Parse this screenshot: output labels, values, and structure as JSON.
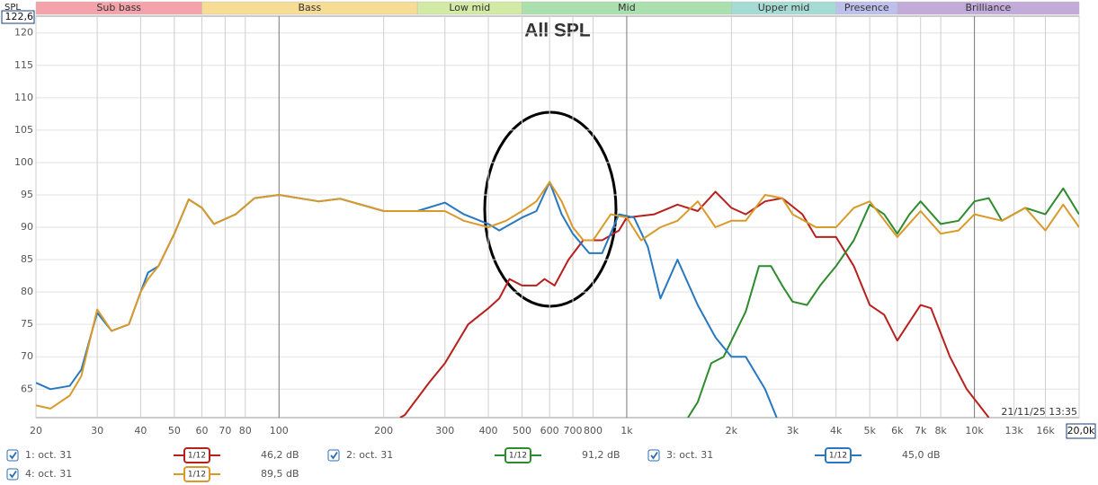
{
  "chart_data": {
    "type": "line",
    "title": "All SPL",
    "ylabel": "SPL",
    "timestamp": "21/11/25 13:35",
    "xscale": "log",
    "grid": true,
    "xlim": [
      20,
      20000
    ],
    "ylim": [
      60.6,
      122.6
    ],
    "yticks": [
      65,
      70,
      75,
      80,
      85,
      90,
      95,
      100,
      105,
      110,
      115,
      120,
      {
        "value": 122.6,
        "label": "122,6"
      }
    ],
    "xticks": [
      20,
      30,
      40,
      50,
      60,
      70,
      80,
      100,
      200,
      300,
      400,
      500,
      600,
      700,
      800,
      {
        "value": 1000,
        "label": "1k"
      },
      {
        "value": 2000,
        "label": "2k"
      },
      {
        "value": 3000,
        "label": "3k"
      },
      {
        "value": 4000,
        "label": "4k"
      },
      {
        "value": 5000,
        "label": "5k"
      },
      {
        "value": 6000,
        "label": "6k"
      },
      {
        "value": 7000,
        "label": "7k"
      },
      {
        "value": 8000,
        "label": "8k"
      },
      {
        "value": 10000,
        "label": "10k"
      },
      {
        "value": 13000,
        "label": "13k"
      },
      {
        "value": 16000,
        "label": "16k"
      },
      {
        "value": 20000,
        "label": "20,0k"
      }
    ],
    "bands": [
      {
        "label": "Sub bass",
        "from": 20,
        "to": 60,
        "color": "#f4a3aa"
      },
      {
        "label": "Bass",
        "from": 60,
        "to": 250,
        "color": "#f7dc96"
      },
      {
        "label": "Low mid",
        "from": 250,
        "to": 500,
        "color": "#d3eaa4"
      },
      {
        "label": "Mid",
        "from": 500,
        "to": 2000,
        "color": "#a9e0ad"
      },
      {
        "label": "Upper mid",
        "from": 2000,
        "to": 4000,
        "color": "#a6dbd4"
      },
      {
        "label": "Presence",
        "from": 4000,
        "to": 6000,
        "color": "#bcc0ea"
      },
      {
        "label": "Brilliance",
        "from": 6000,
        "to": 20000,
        "color": "#c3abd9"
      }
    ],
    "series": [
      {
        "name": "1: oct. 31",
        "smoothing": "1/12",
        "level": "46,2 dB",
        "color": "#b8201e",
        "x": [
          223,
          230,
          270,
          300,
          350,
          400,
          430,
          460,
          500,
          550,
          580,
          620,
          680,
          750,
          850,
          950,
          1000,
          1200,
          1400,
          1600,
          1800,
          2000,
          2200,
          2500,
          2800,
          3200,
          3500,
          4000,
          4500,
          5000,
          5500,
          6000,
          7000,
          7500,
          8500,
          9500,
          10500,
          11000
        ],
        "values": [
          60.6,
          61,
          66,
          69,
          75,
          77.5,
          79,
          82,
          81,
          81,
          82,
          81,
          85,
          88,
          88,
          89.5,
          91.5,
          92,
          93.5,
          92.5,
          95.5,
          93,
          92,
          94,
          94.5,
          92,
          88.5,
          88.5,
          84,
          78,
          76.5,
          72.5,
          78,
          77.5,
          70,
          65,
          62,
          60.6
        ]
      },
      {
        "name": "2: oct. 31",
        "smoothing": "1/12",
        "level": "91,2 dB",
        "color": "#2e8b2e",
        "x": [
          1500,
          1600,
          1750,
          1900,
          2200,
          2400,
          2600,
          2800,
          3000,
          3300,
          3600,
          4000,
          4500,
          5000,
          5500,
          6000,
          6500,
          7000,
          8000,
          9000,
          10000,
          11000,
          12000,
          14000,
          16000,
          18000,
          20000
        ],
        "values": [
          60.6,
          63,
          69,
          70,
          77,
          84,
          84,
          81,
          78.5,
          78,
          81,
          84,
          88,
          93.5,
          92,
          89,
          92,
          94,
          90.5,
          91,
          94,
          94.5,
          91,
          93,
          92,
          96,
          92
        ]
      },
      {
        "name": "3: oct. 31",
        "smoothing": "1/12",
        "level": "45,0 dB",
        "color": "#2878c0",
        "x": [
          20,
          22,
          25,
          27,
          30,
          33,
          37,
          40,
          42,
          45,
          50,
          55,
          60,
          65,
          75,
          85,
          100,
          130,
          150,
          200,
          250,
          300,
          340,
          400,
          430,
          500,
          550,
          600,
          650,
          700,
          780,
          850,
          950,
          1050,
          1150,
          1250,
          1400,
          1600,
          1800,
          2000,
          2200,
          2500,
          2700
        ],
        "values": [
          66,
          65,
          65.5,
          68,
          76.8,
          74,
          75,
          80,
          83,
          84,
          89,
          94.3,
          93,
          90.5,
          92,
          94.5,
          95,
          94,
          94.4,
          92.5,
          92.5,
          93.8,
          92,
          90.5,
          89.5,
          91.5,
          92.5,
          97,
          92,
          89,
          86,
          86,
          92,
          91.5,
          87,
          79,
          85,
          78,
          73,
          70,
          70,
          65,
          60.6
        ]
      },
      {
        "name": "4: oct. 31",
        "smoothing": "1/12",
        "level": "89,5 dB",
        "color": "#d99a2b",
        "x": [
          20,
          22,
          25,
          27,
          30,
          33,
          37,
          40,
          42,
          45,
          50,
          55,
          60,
          65,
          75,
          85,
          100,
          130,
          150,
          200,
          250,
          300,
          340,
          400,
          450,
          500,
          550,
          600,
          650,
          700,
          750,
          800,
          900,
          1000,
          1100,
          1250,
          1400,
          1600,
          1800,
          2000,
          2200,
          2500,
          2800,
          3000,
          3500,
          4000,
          4500,
          5000,
          6000,
          7000,
          8000,
          9000,
          10000,
          12000,
          14000,
          16000,
          18000,
          20000
        ],
        "values": [
          62.5,
          62,
          64,
          67,
          77.3,
          74,
          75,
          80,
          82,
          84,
          89,
          94.3,
          93,
          90.5,
          92,
          94.5,
          95,
          94,
          94.4,
          92.5,
          92.5,
          92.5,
          91,
          90,
          91,
          92.5,
          94,
          97,
          94,
          90,
          88,
          88,
          92,
          91.5,
          88,
          90,
          91,
          94,
          90,
          91,
          91,
          95,
          94.5,
          92,
          90,
          90,
          93,
          94,
          88.5,
          92.5,
          89,
          89.5,
          92,
          91,
          93,
          89.5,
          93.5,
          90
        ]
      }
    ]
  }
}
